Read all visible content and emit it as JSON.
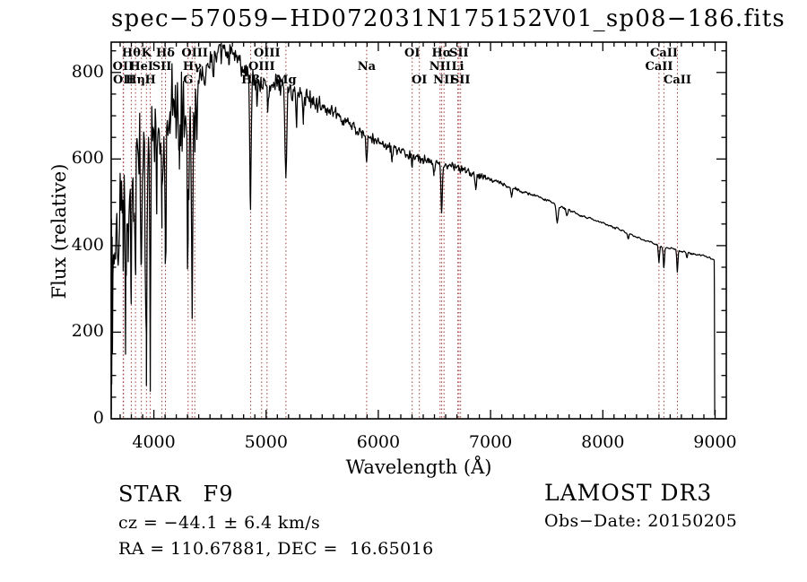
{
  "title": "spec−57059−HD072031N175152V01_sp08−186.fits",
  "annotations": {
    "object_class": "STAR",
    "subclass": "F9",
    "cz": "cz = −44.1 ± 6.4 km/s",
    "radec": "RA = 110.67881, DEC =  16.65016",
    "survey": "LAMOST DR3",
    "obs_date": "Obs−Date: 20150205"
  },
  "chart_data": {
    "type": "line",
    "title": "spec−57059−HD072031N175152V01_sp08−186.fits",
    "xlabel": "Wavelength (Å)",
    "ylabel": "Flux (relative)",
    "xlim": [
      3620,
      9100
    ],
    "ylim": [
      0,
      870
    ],
    "xticks": [
      4000,
      5000,
      6000,
      7000,
      8000,
      9000
    ],
    "xtick_labels": [
      "4000",
      "5000",
      "6000",
      "7000",
      "8000",
      "9000"
    ],
    "yticks": [
      0,
      200,
      400,
      600,
      800
    ],
    "ytick_labels": [
      "0",
      "200",
      "400",
      "600",
      "800"
    ],
    "x_minor_step": 100,
    "y_minor_step": 50,
    "grid": false,
    "line_color": "#000000",
    "marker_line_color": "#9e3a3a",
    "spectral_lines": [
      {
        "label": "OII",
        "wavelength": 3727.1,
        "row": 2
      },
      {
        "label": "OII",
        "wavelength": 3729.9,
        "row": 3
      },
      {
        "label": "Hθ",
        "wavelength": 3798.9,
        "row": 1
      },
      {
        "label": "Hη",
        "wavelength": 3836.5,
        "row": 3
      },
      {
        "label": "HeI",
        "wavelength": 3889.0,
        "row": 2
      },
      {
        "label": "K",
        "wavelength": 3933.7,
        "row": 1
      },
      {
        "label": "H",
        "wavelength": 3968.5,
        "row": 3
      },
      {
        "label": "SII",
        "wavelength": 4072.0,
        "row": 2
      },
      {
        "label": "Hδ",
        "wavelength": 4102.9,
        "row": 1
      },
      {
        "label": "G",
        "wavelength": 4305.6,
        "row": 3
      },
      {
        "label": "Hγ",
        "wavelength": 4341.7,
        "row": 2
      },
      {
        "label": "OIII",
        "wavelength": 4364.4,
        "row": 1
      },
      {
        "label": "Hβ",
        "wavelength": 4862.7,
        "row": 3
      },
      {
        "label": "OIII",
        "wavelength": 4960.3,
        "row": 2
      },
      {
        "label": "OIII",
        "wavelength": 5008.2,
        "row": 1
      },
      {
        "label": "Mg",
        "wavelength": 5176.7,
        "row": 3
      },
      {
        "label": "Na",
        "wavelength": 5895.6,
        "row": 2
      },
      {
        "label": "OI",
        "wavelength": 6302.0,
        "row": 1
      },
      {
        "label": "OI",
        "wavelength": 6365.5,
        "row": 3
      },
      {
        "label": "NII",
        "wavelength": 6549.9,
        "row": 2
      },
      {
        "label": "Hα",
        "wavelength": 6564.6,
        "row": 1
      },
      {
        "label": "NII",
        "wavelength": 6585.3,
        "row": 3
      },
      {
        "label": "Li",
        "wavelength": 6707.9,
        "row": 2
      },
      {
        "label": "SII",
        "wavelength": 6718.3,
        "row": 1
      },
      {
        "label": "SII",
        "wavelength": 6732.7,
        "row": 3
      },
      {
        "label": "CaII",
        "wavelength": 8500.4,
        "row": 2
      },
      {
        "label": "CaII",
        "wavelength": 8544.4,
        "row": 1
      },
      {
        "label": "CaII",
        "wavelength": 8664.5,
        "row": 3
      }
    ],
    "continuum": [
      [
        3620,
        320
      ],
      [
        3660,
        420
      ],
      [
        3700,
        520
      ],
      [
        3760,
        590
      ],
      [
        3820,
        640
      ],
      [
        3880,
        670
      ],
      [
        3940,
        665
      ],
      [
        4000,
        670
      ],
      [
        4060,
        680
      ],
      [
        4120,
        700
      ],
      [
        4180,
        710
      ],
      [
        4240,
        725
      ],
      [
        4300,
        705
      ],
      [
        4360,
        745
      ],
      [
        4420,
        800
      ],
      [
        4480,
        820
      ],
      [
        4540,
        835
      ],
      [
        4600,
        845
      ],
      [
        4650,
        855
      ],
      [
        4700,
        845
      ],
      [
        4760,
        825
      ],
      [
        4820,
        805
      ],
      [
        4880,
        780
      ],
      [
        4940,
        772
      ],
      [
        5000,
        768
      ],
      [
        5060,
        775
      ],
      [
        5120,
        772
      ],
      [
        5180,
        762
      ],
      [
        5240,
        758
      ],
      [
        5300,
        752
      ],
      [
        5360,
        740
      ],
      [
        5420,
        732
      ],
      [
        5500,
        720
      ],
      [
        5600,
        706
      ],
      [
        5700,
        690
      ],
      [
        5800,
        668
      ],
      [
        5900,
        652
      ],
      [
        6000,
        640
      ],
      [
        6100,
        627
      ],
      [
        6200,
        616
      ],
      [
        6300,
        606
      ],
      [
        6400,
        600
      ],
      [
        6500,
        592
      ],
      [
        6600,
        586
      ],
      [
        6700,
        580
      ],
      [
        6800,
        572
      ],
      [
        6900,
        562
      ],
      [
        7000,
        552
      ],
      [
        7100,
        543
      ],
      [
        7200,
        533
      ],
      [
        7300,
        524
      ],
      [
        7400,
        516
      ],
      [
        7500,
        504
      ],
      [
        7600,
        493
      ],
      [
        7700,
        481
      ],
      [
        7800,
        471
      ],
      [
        7900,
        461
      ],
      [
        8000,
        452
      ],
      [
        8100,
        442
      ],
      [
        8200,
        432
      ],
      [
        8300,
        421
      ],
      [
        8400,
        410
      ],
      [
        8500,
        400
      ],
      [
        8600,
        394
      ],
      [
        8700,
        387
      ],
      [
        8800,
        381
      ],
      [
        8900,
        376
      ],
      [
        8950,
        372
      ],
      [
        8993,
        368
      ]
    ],
    "absorption": [
      [
        3727,
        140,
        6
      ],
      [
        3750,
        260,
        7
      ],
      [
        3771,
        240,
        6
      ],
      [
        3798,
        330,
        7
      ],
      [
        3820,
        150,
        5
      ],
      [
        3836,
        300,
        6
      ],
      [
        3889,
        320,
        7
      ],
      [
        3933,
        545,
        6
      ],
      [
        3968,
        495,
        6
      ],
      [
        4026,
        120,
        5
      ],
      [
        4072,
        140,
        6
      ],
      [
        4102,
        300,
        7
      ],
      [
        4144,
        90,
        5
      ],
      [
        4226,
        140,
        5
      ],
      [
        4305,
        230,
        9
      ],
      [
        4341,
        515,
        6
      ],
      [
        4364,
        80,
        5
      ],
      [
        4383,
        120,
        5
      ],
      [
        4455,
        60,
        4
      ],
      [
        4531,
        50,
        4
      ],
      [
        4668,
        40,
        4
      ],
      [
        4861,
        305,
        6
      ],
      [
        4920,
        60,
        4
      ],
      [
        5015,
        50,
        4
      ],
      [
        5176,
        205,
        8
      ],
      [
        5270,
        70,
        5
      ],
      [
        5332,
        50,
        4
      ],
      [
        5895,
        65,
        6
      ],
      [
        6122,
        25,
        5
      ],
      [
        6302,
        22,
        5
      ],
      [
        6495,
        25,
        5
      ],
      [
        6564,
        108,
        6
      ],
      [
        6867,
        28,
        7
      ],
      [
        7186,
        20,
        7
      ],
      [
        7594,
        38,
        8
      ],
      [
        7680,
        15,
        6
      ],
      [
        8227,
        15,
        6
      ],
      [
        8500,
        38,
        5
      ],
      [
        8544,
        50,
        5
      ],
      [
        8664,
        48,
        5
      ],
      [
        8750,
        12,
        5
      ]
    ],
    "noise_amp": [
      [
        3620,
        150
      ],
      [
        3680,
        115
      ],
      [
        3740,
        100
      ],
      [
        4340,
        88
      ],
      [
        4400,
        40
      ],
      [
        4460,
        26
      ],
      [
        5000,
        24
      ],
      [
        5400,
        20
      ],
      [
        5700,
        14
      ],
      [
        6000,
        10
      ],
      [
        6500,
        9
      ],
      [
        7000,
        8
      ],
      [
        7600,
        6
      ],
      [
        8200,
        4
      ],
      [
        8993,
        4
      ]
    ],
    "noise_seed": 42,
    "blue_spike_prob": 0.06,
    "blue_spike_scale": 2.2,
    "blue_limit": 4420,
    "sampling_step": 6,
    "start_points": [
      [
        3621,
        8
      ],
      [
        3623,
        460
      ],
      [
        3625,
        80
      ],
      [
        3628,
        420
      ],
      [
        3631,
        150
      ],
      [
        3635,
        330
      ]
    ],
    "end_points": [
      [
        8994,
        300
      ],
      [
        8995,
        150
      ],
      [
        8996,
        60
      ],
      [
        8997,
        8
      ]
    ]
  }
}
